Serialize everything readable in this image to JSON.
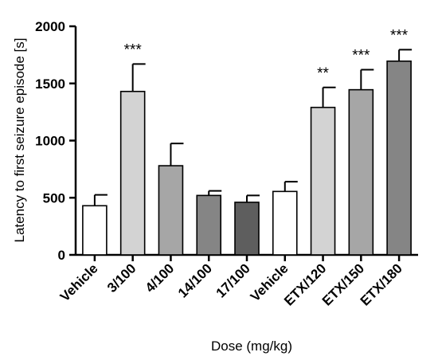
{
  "chart_data": {
    "type": "bar",
    "title": "",
    "xlabel": "Dose (mg/kg)",
    "ylabel": "Latency to first seizure episode [s]",
    "ylim": [
      0,
      2000
    ],
    "yticks": [
      "0",
      "500",
      "1000",
      "1500",
      "2000"
    ],
    "categories": [
      "Vehicle",
      "3/100",
      "4/100",
      "14/100",
      "17/100",
      "Vehicle",
      "ETX/120",
      "ETX/150",
      "ETX/180"
    ],
    "values": [
      430,
      1430,
      780,
      520,
      460,
      555,
      1290,
      1445,
      1695
    ],
    "errors": [
      95,
      240,
      195,
      40,
      60,
      85,
      175,
      175,
      100
    ],
    "significance": [
      "",
      "***",
      "",
      "",
      "",
      "",
      "**",
      "***",
      "***"
    ],
    "colors": [
      "#ffffff",
      "#d3d3d3",
      "#a6a6a6",
      "#858585",
      "#5e5e5e",
      "#ffffff",
      "#d3d3d3",
      "#a6a6a6",
      "#858585"
    ],
    "grid": false,
    "legend": "none"
  }
}
